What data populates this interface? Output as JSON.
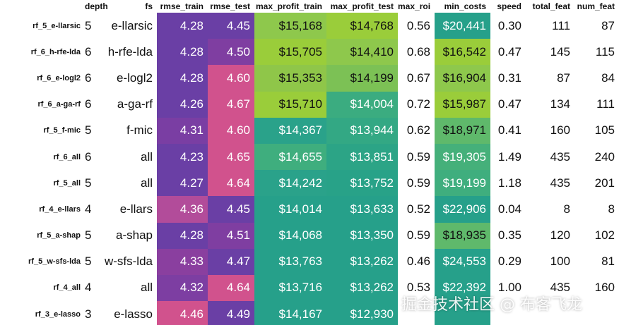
{
  "columns": [
    {
      "key": "depth",
      "label": "depth"
    },
    {
      "key": "fs",
      "label": "fs"
    },
    {
      "key": "rmse_train",
      "label": "rmse_train"
    },
    {
      "key": "rmse_test",
      "label": "rmse_test"
    },
    {
      "key": "max_profit_train",
      "label": "max_profit_train"
    },
    {
      "key": "max_profit_test",
      "label": "max_profit_test"
    },
    {
      "key": "max_roi",
      "label": "max_roi"
    },
    {
      "key": "min_costs",
      "label": "min_costs"
    },
    {
      "key": "speed",
      "label": "speed"
    },
    {
      "key": "total_feat",
      "label": "total_feat"
    },
    {
      "key": "num_feat",
      "label": "num_feat"
    }
  ],
  "rows": [
    {
      "name": "rf_5_e-llarsic",
      "depth": "5",
      "fs": "e-llarsic",
      "rmse_train": "4.28",
      "rmse_test": "4.45",
      "max_profit_train": "$15,168",
      "max_profit_test": "$14,768",
      "max_roi": "0.56",
      "min_costs": "$20,441",
      "speed": "0.30",
      "total_feat": "111",
      "num_feat": "87"
    },
    {
      "name": "rf_6_h-rfe-lda",
      "depth": "6",
      "fs": "h-rfe-lda",
      "rmse_train": "4.28",
      "rmse_test": "4.50",
      "max_profit_train": "$15,705",
      "max_profit_test": "$14,410",
      "max_roi": "0.68",
      "min_costs": "$16,542",
      "speed": "0.47",
      "total_feat": "145",
      "num_feat": "115"
    },
    {
      "name": "rf_6_e-logl2",
      "depth": "6",
      "fs": "e-logl2",
      "rmse_train": "4.28",
      "rmse_test": "4.60",
      "max_profit_train": "$15,353",
      "max_profit_test": "$14,199",
      "max_roi": "0.67",
      "min_costs": "$16,904",
      "speed": "0.31",
      "total_feat": "87",
      "num_feat": "84"
    },
    {
      "name": "rf_6_a-ga-rf",
      "depth": "6",
      "fs": "a-ga-rf",
      "rmse_train": "4.26",
      "rmse_test": "4.67",
      "max_profit_train": "$15,710",
      "max_profit_test": "$14,004",
      "max_roi": "0.72",
      "min_costs": "$15,987",
      "speed": "0.47",
      "total_feat": "134",
      "num_feat": "111"
    },
    {
      "name": "rf_5_f-mic",
      "depth": "5",
      "fs": "f-mic",
      "rmse_train": "4.31",
      "rmse_test": "4.60",
      "max_profit_train": "$14,367",
      "max_profit_test": "$13,944",
      "max_roi": "0.62",
      "min_costs": "$18,971",
      "speed": "0.41",
      "total_feat": "160",
      "num_feat": "105"
    },
    {
      "name": "rf_6_all",
      "depth": "6",
      "fs": "all",
      "rmse_train": "4.23",
      "rmse_test": "4.65",
      "max_profit_train": "$14,655",
      "max_profit_test": "$13,851",
      "max_roi": "0.59",
      "min_costs": "$19,305",
      "speed": "1.49",
      "total_feat": "435",
      "num_feat": "240"
    },
    {
      "name": "rf_5_all",
      "depth": "5",
      "fs": "all",
      "rmse_train": "4.27",
      "rmse_test": "4.64",
      "max_profit_train": "$14,242",
      "max_profit_test": "$13,752",
      "max_roi": "0.59",
      "min_costs": "$19,199",
      "speed": "1.18",
      "total_feat": "435",
      "num_feat": "201"
    },
    {
      "name": "rf_4_e-llars",
      "depth": "4",
      "fs": "e-llars",
      "rmse_train": "4.36",
      "rmse_test": "4.45",
      "max_profit_train": "$14,014",
      "max_profit_test": "$13,633",
      "max_roi": "0.52",
      "min_costs": "$22,906",
      "speed": "0.04",
      "total_feat": "8",
      "num_feat": "8"
    },
    {
      "name": "rf_5_a-shap",
      "depth": "5",
      "fs": "a-shap",
      "rmse_train": "4.28",
      "rmse_test": "4.51",
      "max_profit_train": "$14,068",
      "max_profit_test": "$13,350",
      "max_roi": "0.59",
      "min_costs": "$18,935",
      "speed": "0.35",
      "total_feat": "120",
      "num_feat": "102"
    },
    {
      "name": "rf_5_w-sfs-lda",
      "depth": "5",
      "fs": "w-sfs-lda",
      "rmse_train": "4.33",
      "rmse_test": "4.47",
      "max_profit_train": "$13,763",
      "max_profit_test": "$13,262",
      "max_roi": "0.46",
      "min_costs": "$24,553",
      "speed": "0.29",
      "total_feat": "100",
      "num_feat": "81"
    },
    {
      "name": "rf_4_all",
      "depth": "4",
      "fs": "all",
      "rmse_train": "4.32",
      "rmse_test": "4.64",
      "max_profit_train": "$13,716",
      "max_profit_test": "$13,262",
      "max_roi": "0.53",
      "min_costs": "$22,392",
      "speed": "1.00",
      "total_feat": "435",
      "num_feat": "160"
    },
    {
      "name": "rf_3_e-lasso",
      "depth": "3",
      "fs": "e-lasso",
      "rmse_train": "4.46",
      "rmse_test": "4.49",
      "max_profit_train": "$14,167",
      "max_profit_test": "$12,930",
      "max_roi": "",
      "min_costs": "",
      "speed": "",
      "total_feat": "",
      "num_feat": ""
    }
  ],
  "cell_colors": {
    "rmse_train": [
      "#6a3fa5",
      "#6a3fa5",
      "#6a3fa5",
      "#6a3fa5",
      "#7a3ea3",
      "#6a3fa5",
      "#6a3fa5",
      "#b24c9a",
      "#6a3fa5",
      "#8a3f9f",
      "#7d3ea2",
      "#d1528d"
    ],
    "rmse_test": [
      "#6a3fa5",
      "#7f3ea1",
      "#d1528d",
      "#d1528d",
      "#d1528d",
      "#d1528d",
      "#d1528d",
      "#6a3fa5",
      "#7f3ea1",
      "#6a3fa5",
      "#d1528d",
      "#6a3fa5"
    ],
    "max_profit_train": [
      "#8ec84c",
      "#9acd3a",
      "#8fc649",
      "#9acd3a",
      "#2aa28a",
      "#3fae7e",
      "#2aa28a",
      "#26a08a",
      "#26a08a",
      "#26a08a",
      "#26a08a",
      "#26a08a"
    ],
    "max_profit_test": [
      "#9acd3a",
      "#8ec84c",
      "#7cc155",
      "#3bac80",
      "#33a884",
      "#2ca486",
      "#28a288",
      "#26a08a",
      "#26a08a",
      "#26a08a",
      "#26a08a",
      "#26a08a"
    ],
    "min_costs": [
      "#26a08a",
      "#9acd3a",
      "#8ec84c",
      "#9acd3a",
      "#5fb96b",
      "#45b07a",
      "#3fae7e",
      "#26a08a",
      "#5fb96b",
      "#26a08a",
      "#26a08a",
      "#26a08a"
    ]
  },
  "text_colors": {
    "rmse_train": [
      "#ffffff",
      "#ffffff",
      "#ffffff",
      "#ffffff",
      "#ffffff",
      "#ffffff",
      "#ffffff",
      "#ffffff",
      "#ffffff",
      "#ffffff",
      "#ffffff",
      "#ffffff"
    ],
    "rmse_test": [
      "#ffffff",
      "#ffffff",
      "#ffffff",
      "#ffffff",
      "#ffffff",
      "#ffffff",
      "#ffffff",
      "#ffffff",
      "#ffffff",
      "#ffffff",
      "#ffffff",
      "#ffffff"
    ],
    "max_profit_train": [
      "#111111",
      "#111111",
      "#111111",
      "#111111",
      "#ffffff",
      "#ffffff",
      "#ffffff",
      "#ffffff",
      "#ffffff",
      "#ffffff",
      "#ffffff",
      "#ffffff"
    ],
    "max_profit_test": [
      "#111111",
      "#111111",
      "#111111",
      "#ffffff",
      "#ffffff",
      "#ffffff",
      "#ffffff",
      "#ffffff",
      "#ffffff",
      "#ffffff",
      "#ffffff",
      "#ffffff"
    ],
    "min_costs": [
      "#ffffff",
      "#111111",
      "#111111",
      "#111111",
      "#111111",
      "#ffffff",
      "#ffffff",
      "#ffffff",
      "#111111",
      "#ffffff",
      "#ffffff",
      "#ffffff"
    ]
  },
  "watermark": "掘金技术社区 @ 布客飞龙"
}
